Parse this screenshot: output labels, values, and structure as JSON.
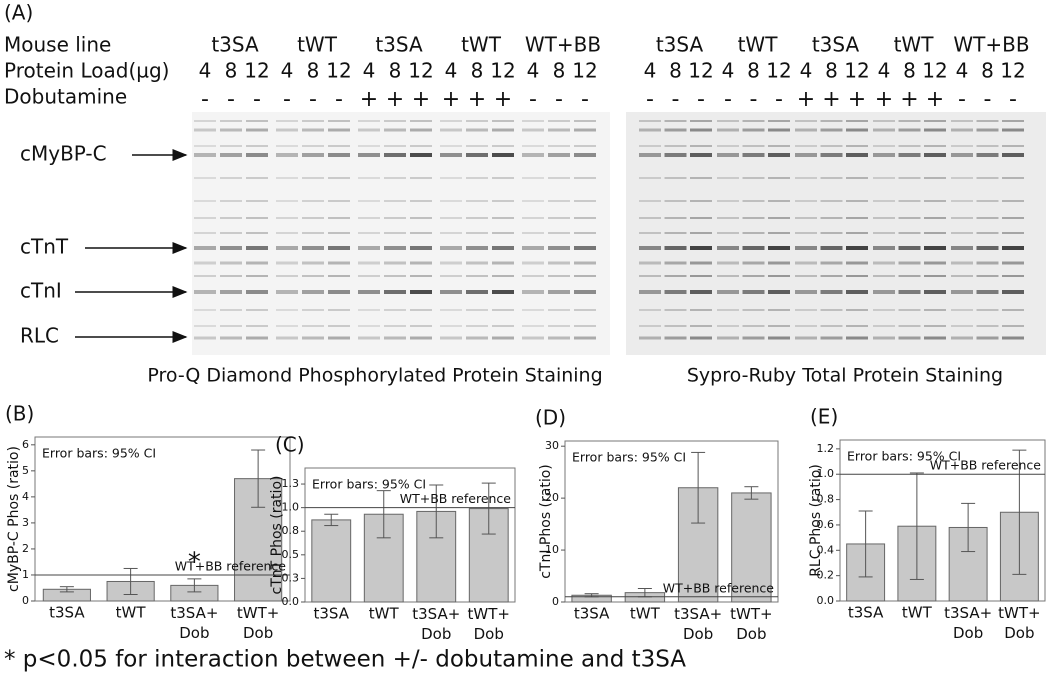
{
  "panel_a": {
    "panel_label": "(A)",
    "row_labels": [
      "Mouse line",
      "Protein Load(µg)",
      "Dobutamine"
    ],
    "band_labels": [
      "cMyBP-C",
      "cTnT",
      "cTnI",
      "RLC"
    ],
    "gels": [
      {
        "caption": "Pro-Q Diamond Phosphorylated Protein Staining",
        "groups": [
          {
            "mouse_line": "t3SA",
            "loads": [
              4,
              8,
              12
            ],
            "dobutamine": [
              "-",
              "-",
              "-"
            ]
          },
          {
            "mouse_line": "tWT",
            "loads": [
              4,
              8,
              12
            ],
            "dobutamine": [
              "-",
              "-",
              "-"
            ]
          },
          {
            "mouse_line": "t3SA",
            "loads": [
              4,
              8,
              12
            ],
            "dobutamine": [
              "+",
              "+",
              "+"
            ]
          },
          {
            "mouse_line": "tWT",
            "loads": [
              4,
              8,
              12
            ],
            "dobutamine": [
              "+",
              "+",
              "+"
            ]
          },
          {
            "mouse_line": "WT+BB",
            "loads": [
              4,
              8,
              12
            ],
            "dobutamine": [
              "-",
              "-",
              "-"
            ]
          }
        ]
      },
      {
        "caption": "Sypro-Ruby Total Protein Staining",
        "groups": [
          {
            "mouse_line": "t3SA",
            "loads": [
              4,
              8,
              12
            ],
            "dobutamine": [
              "-",
              "-",
              "-"
            ]
          },
          {
            "mouse_line": "tWT",
            "loads": [
              4,
              8,
              12
            ],
            "dobutamine": [
              "-",
              "-",
              "-"
            ]
          },
          {
            "mouse_line": "t3SA",
            "loads": [
              4,
              8,
              12
            ],
            "dobutamine": [
              "+",
              "+",
              "+"
            ]
          },
          {
            "mouse_line": "tWT",
            "loads": [
              4,
              8,
              12
            ],
            "dobutamine": [
              "+",
              "+",
              "+"
            ]
          },
          {
            "mouse_line": "WT+BB",
            "loads": [
              4,
              8,
              12
            ],
            "dobutamine": [
              "-",
              "-",
              "-"
            ]
          }
        ]
      }
    ]
  },
  "chart_data": [
    {
      "type": "bar",
      "panel_label": "(B)",
      "y_label": "cMyBP-C Phos (ratio)",
      "annotation": "Error bars: 95% CI",
      "categories": [
        "t3SA",
        "tWT",
        "t3SA+ Dob",
        "tWT+ Dob"
      ],
      "values": [
        0.45,
        0.75,
        0.6,
        4.7
      ],
      "errors": [
        0.1,
        0.5,
        0.25,
        1.1
      ],
      "significance_marks": [
        null,
        null,
        "*",
        null
      ],
      "color": "#c8c8c8",
      "reference_line": {
        "value": 1,
        "label": "WT+BB reference"
      },
      "ylim": [
        0,
        6.3
      ],
      "yticks": [
        0,
        1,
        2,
        3,
        4,
        5,
        6
      ]
    },
    {
      "type": "bar",
      "panel_label": "(C)",
      "y_label": "cTnT Phos (ratio)",
      "annotation": "Error bars: 95% CI",
      "categories": [
        "t3SA",
        "tWT",
        "t3SA+ Dob",
        "tWT+ Dob"
      ],
      "values": [
        0.87,
        0.93,
        0.96,
        0.99
      ],
      "errors": [
        0.06,
        0.25,
        0.28,
        0.27
      ],
      "color": "#c8c8c8",
      "reference_line": {
        "value": 1,
        "label": "WT+BB reference"
      },
      "ylim": [
        0,
        1.42
      ],
      "yticks": [
        {
          "value": 0,
          "label": "0.0"
        },
        {
          "value": 0.25,
          "label": "0.3"
        },
        0.5,
        {
          "value": 0.75,
          "label": "0.8"
        },
        {
          "value": 1,
          "label": "1.0"
        },
        {
          "value": 1.25,
          "label": "1.3"
        }
      ]
    },
    {
      "type": "bar",
      "panel_label": "(D)",
      "y_label": "cTnI Phos (ratio)",
      "annotation": "Error bars: 95% CI",
      "categories": [
        "t3SA",
        "tWT",
        "t3SA+ Dob",
        "tWT+ Dob"
      ],
      "values": [
        1.3,
        1.8,
        22,
        21
      ],
      "errors": [
        0.3,
        0.8,
        6.8,
        1.2
      ],
      "color": "#c8c8c8",
      "reference_line": {
        "value": 1,
        "label": "WT+BB reference"
      },
      "ylim": [
        0,
        31
      ],
      "yticks": [
        0,
        10,
        20,
        30
      ]
    },
    {
      "type": "bar",
      "panel_label": "(E)",
      "y_label": "RLC Phos (ratio)",
      "annotation": "Error bars: 95% CI",
      "categories": [
        "t3SA",
        "tWT",
        "t3SA+ Dob",
        "tWT+ Dob"
      ],
      "values": [
        0.45,
        0.59,
        0.58,
        0.7
      ],
      "errors": [
        0.26,
        0.42,
        0.19,
        0.49
      ],
      "color": "#c8c8c8",
      "reference_line": {
        "value": 1,
        "label": "WT+BB reference"
      },
      "ylim": [
        0,
        1.27
      ],
      "yticks": [
        {
          "value": 0,
          "label": "0.0"
        },
        0.2,
        0.4,
        0.6,
        0.8,
        {
          "value": 1,
          "label": "1.0"
        },
        1.2
      ]
    }
  ],
  "footnote": "* p<0.05 for interaction between +/- dobutamine and t3SA"
}
